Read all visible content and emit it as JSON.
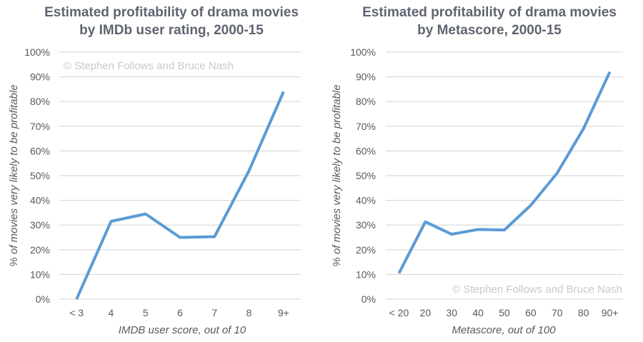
{
  "chart_data": [
    {
      "type": "line",
      "title_lines": [
        "Estimated profitability of drama movies",
        "by IMDb user rating, 2000-15"
      ],
      "categories": [
        "< 3",
        "4",
        "5",
        "6",
        "7",
        "8",
        "9+"
      ],
      "values": [
        0,
        31.5,
        34.5,
        25,
        25.3,
        52,
        84
      ],
      "xlabel": "IMDB user score, out of 10",
      "ylabel": "% of movies very likely to be profitable",
      "ylim": [
        0,
        100
      ],
      "yticks": [
        "0%",
        "10%",
        "20%",
        "30%",
        "40%",
        "50%",
        "60%",
        "70%",
        "80%",
        "90%",
        "100%"
      ],
      "grid": true,
      "watermark": "© Stephen Follows and Bruce Nash",
      "watermark_position": "top-left",
      "color": "#5b9bd5"
    },
    {
      "type": "line",
      "title_lines": [
        "Estimated profitability of drama movies",
        "by Metascore, 2000-15"
      ],
      "categories": [
        "< 20",
        "20",
        "30",
        "40",
        "50",
        "60",
        "70",
        "80",
        "90+"
      ],
      "values": [
        10.5,
        31.3,
        26.3,
        28.2,
        28,
        38,
        51,
        69,
        92
      ],
      "xlabel": "Metascore, out of 100",
      "ylabel": "% of movies very likely to be profitable",
      "ylim": [
        0,
        100
      ],
      "yticks": [
        "0%",
        "10%",
        "20%",
        "30%",
        "40%",
        "50%",
        "60%",
        "70%",
        "80%",
        "90%",
        "100%"
      ],
      "grid": true,
      "watermark": "© Stephen Follows and Bruce Nash",
      "watermark_position": "bottom-right",
      "color": "#5b9bd5"
    }
  ]
}
